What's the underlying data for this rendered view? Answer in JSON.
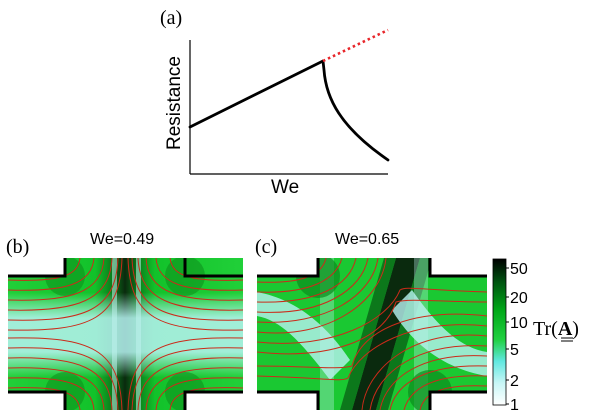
{
  "panel_a": {
    "label": "(a)",
    "ylabel": "Resistance",
    "xlabel": "We"
  },
  "panel_b": {
    "label": "(b)",
    "title": "We=0.49"
  },
  "panel_c": {
    "label": "(c)",
    "title": "We=0.65"
  },
  "colorbar": {
    "ticks": [
      "50",
      "20",
      "10",
      "5",
      "2",
      "1"
    ],
    "label_prefix": "Tr(",
    "label_symbol": "A",
    "label_suffix": ")",
    "colors": [
      "#ffffff",
      "#a8eef0",
      "#40e8e0",
      "#10d020",
      "#00a000",
      "#004010",
      "#000000"
    ]
  },
  "colors": {
    "streamline": "#cc2a1a",
    "extrapolation": "#e8262a",
    "field_green": "#16c828",
    "field_cyan": "#a8f0f0",
    "field_dark": "#0a2a0e"
  }
}
